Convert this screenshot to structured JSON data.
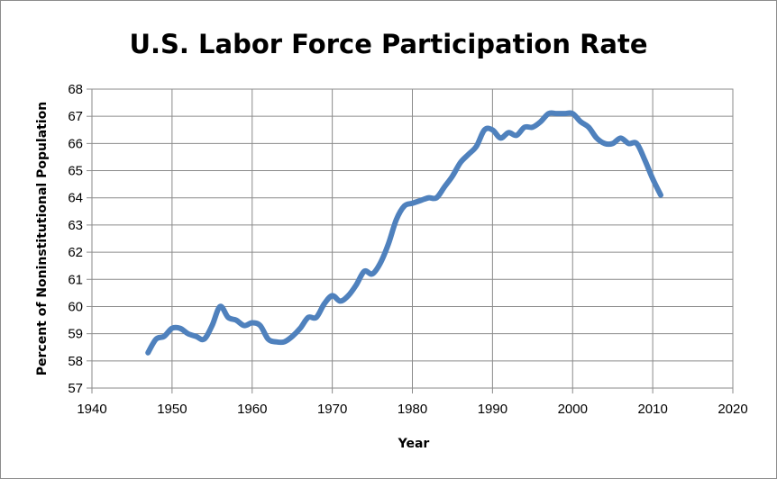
{
  "chart_data": {
    "type": "line",
    "title": "U.S. Labor Force Participation Rate",
    "xlabel": "Year",
    "ylabel": "Percent of Noninstitutional Population",
    "xlim": [
      1940,
      2020
    ],
    "ylim": [
      57,
      68
    ],
    "x_ticks": [
      "1940",
      "1950",
      "1960",
      "1970",
      "1980",
      "1990",
      "2000",
      "2010",
      "2020"
    ],
    "y_ticks": [
      "57",
      "58",
      "59",
      "60",
      "61",
      "62",
      "63",
      "64",
      "65",
      "66",
      "67",
      "68"
    ],
    "grid": true,
    "legend": "none",
    "series": [
      {
        "color": "#4f81bd",
        "x": [
          1947,
          1948,
          1949,
          1950,
          1951,
          1952,
          1953,
          1954,
          1955,
          1956,
          1957,
          1958,
          1959,
          1960,
          1961,
          1962,
          1963,
          1964,
          1965,
          1966,
          1967,
          1968,
          1969,
          1970,
          1971,
          1972,
          1973,
          1974,
          1975,
          1976,
          1977,
          1978,
          1979,
          1980,
          1981,
          1982,
          1983,
          1984,
          1985,
          1986,
          1987,
          1988,
          1989,
          1990,
          1991,
          1992,
          1993,
          1994,
          1995,
          1996,
          1997,
          1998,
          1999,
          2000,
          2001,
          2002,
          2003,
          2004,
          2005,
          2006,
          2007,
          2008,
          2009,
          2010,
          2011
        ],
        "y": [
          58.3,
          58.8,
          58.9,
          59.2,
          59.2,
          59.0,
          58.9,
          58.8,
          59.3,
          60.0,
          59.6,
          59.5,
          59.3,
          59.4,
          59.3,
          58.8,
          58.7,
          58.7,
          58.9,
          59.2,
          59.6,
          59.6,
          60.1,
          60.4,
          60.2,
          60.4,
          60.8,
          61.3,
          61.2,
          61.6,
          62.3,
          63.2,
          63.7,
          63.8,
          63.9,
          64.0,
          64.0,
          64.4,
          64.8,
          65.3,
          65.6,
          65.9,
          66.5,
          66.5,
          66.2,
          66.4,
          66.3,
          66.6,
          66.6,
          66.8,
          67.1,
          67.1,
          67.1,
          67.1,
          66.8,
          66.6,
          66.2,
          66.0,
          66.0,
          66.2,
          66.0,
          66.0,
          65.4,
          64.7,
          64.1
        ]
      }
    ]
  }
}
